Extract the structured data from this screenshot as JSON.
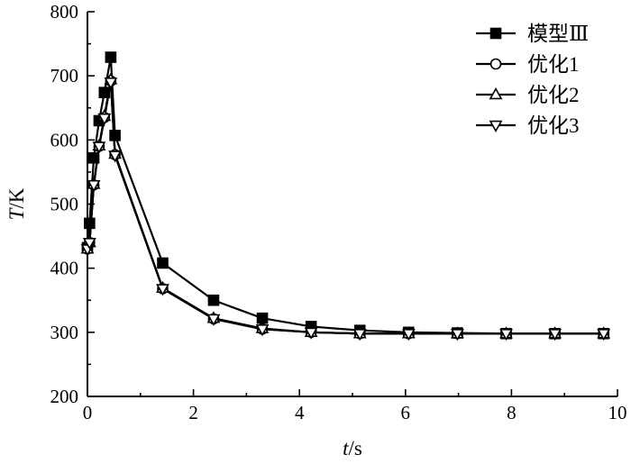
{
  "chart_data": {
    "type": "line",
    "xlabel_italic": "t",
    "xlabel_unit": "/s",
    "ylabel_italic": "T",
    "ylabel_unit": "/K",
    "xlim": [
      0,
      10
    ],
    "ylim": [
      200,
      800
    ],
    "xticks": [
      0,
      2,
      4,
      6,
      8,
      10
    ],
    "xtick_labels": [
      "0",
      "2",
      "4",
      "6",
      "8",
      "10"
    ],
    "yticks": [
      200,
      300,
      400,
      500,
      600,
      700,
      800
    ],
    "ytick_labels": [
      "200",
      "300",
      "400",
      "500",
      "600",
      "700",
      "800"
    ],
    "grid": false,
    "legend_position": "top-right",
    "series": [
      {
        "name": "模型Ⅲ",
        "marker": "square-filled",
        "x": [
          0.0,
          0.04,
          0.12,
          0.22,
          0.32,
          0.44,
          0.52,
          1.42,
          2.38,
          3.3,
          4.22,
          5.14,
          6.06,
          6.98,
          7.9,
          8.82,
          9.74
        ],
        "y": [
          432,
          470,
          572,
          630,
          674,
          729,
          607,
          408,
          350,
          322,
          309,
          303,
          300,
          299,
          298,
          298,
          298
        ]
      },
      {
        "name": "优化1",
        "marker": "circle-open",
        "x": [
          0.0,
          0.04,
          0.12,
          0.22,
          0.32,
          0.44,
          0.52,
          1.42,
          2.38,
          3.3,
          4.22,
          5.14,
          6.06,
          6.98,
          7.9,
          8.82,
          9.74
        ],
        "y": [
          430,
          440,
          530,
          590,
          635,
          692,
          577,
          368,
          321,
          305,
          300,
          298,
          298,
          298,
          298,
          298,
          298
        ]
      },
      {
        "name": "优化2",
        "marker": "triangle-up-open",
        "x": [
          0.0,
          0.04,
          0.12,
          0.22,
          0.32,
          0.44,
          0.52,
          1.42,
          2.38,
          3.3,
          4.22,
          5.14,
          6.06,
          6.98,
          7.9,
          8.82,
          9.74
        ],
        "y": [
          430,
          440,
          531,
          591,
          637,
          694,
          578,
          369,
          322,
          306,
          300,
          298,
          298,
          298,
          298,
          298,
          298
        ]
      },
      {
        "name": "优化3",
        "marker": "triangle-down-open",
        "x": [
          0.0,
          0.04,
          0.12,
          0.22,
          0.32,
          0.44,
          0.52,
          1.42,
          2.38,
          3.3,
          4.22,
          5.14,
          6.06,
          6.98,
          7.9,
          8.82,
          9.74
        ],
        "y": [
          430,
          440,
          530,
          590,
          634,
          690,
          576,
          368,
          321,
          305,
          300,
          298,
          298,
          298,
          298,
          298,
          298
        ]
      }
    ]
  }
}
